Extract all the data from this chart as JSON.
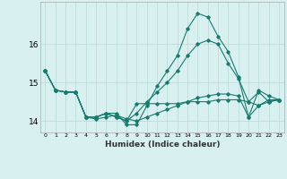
{
  "xlabel": "Humidex (Indice chaleur)",
  "x_values": [
    0,
    1,
    2,
    3,
    4,
    5,
    6,
    7,
    8,
    9,
    10,
    11,
    12,
    13,
    14,
    15,
    16,
    17,
    18,
    19,
    20,
    21,
    22,
    23
  ],
  "lines": [
    [
      15.3,
      14.8,
      14.75,
      14.75,
      14.1,
      14.1,
      14.2,
      14.1,
      14.0,
      14.45,
      14.45,
      14.45,
      14.45,
      14.45,
      14.5,
      14.5,
      14.5,
      14.55,
      14.55,
      14.55,
      14.5,
      14.4,
      14.55,
      14.55
    ],
    [
      15.3,
      14.8,
      14.75,
      14.75,
      14.1,
      14.05,
      14.1,
      14.15,
      14.05,
      14.0,
      14.1,
      14.2,
      14.3,
      14.4,
      14.5,
      14.6,
      14.65,
      14.7,
      14.7,
      14.65,
      14.1,
      14.4,
      14.5,
      14.55
    ],
    [
      15.3,
      14.8,
      14.75,
      14.75,
      14.1,
      14.1,
      14.2,
      14.1,
      14.0,
      14.2,
      14.5,
      14.75,
      15.0,
      15.3,
      15.7,
      16.0,
      16.1,
      16.0,
      15.5,
      15.1,
      14.5,
      14.75,
      14.5,
      14.55
    ],
    [
      15.3,
      14.8,
      14.75,
      14.75,
      14.1,
      14.1,
      14.2,
      14.2,
      13.9,
      13.9,
      14.4,
      14.9,
      15.3,
      15.7,
      16.4,
      16.8,
      16.7,
      16.2,
      15.8,
      15.15,
      14.1,
      14.8,
      14.65,
      14.55
    ]
  ],
  "line_color": "#1a7a6e",
  "bg_color": "#d8f0f0",
  "grid_color": "#b8d8d8",
  "ylim": [
    13.7,
    17.1
  ],
  "yticks": [
    14,
    15,
    16
  ],
  "xlim": [
    -0.5,
    23.5
  ],
  "figsize": [
    3.2,
    2.0
  ],
  "dpi": 100
}
